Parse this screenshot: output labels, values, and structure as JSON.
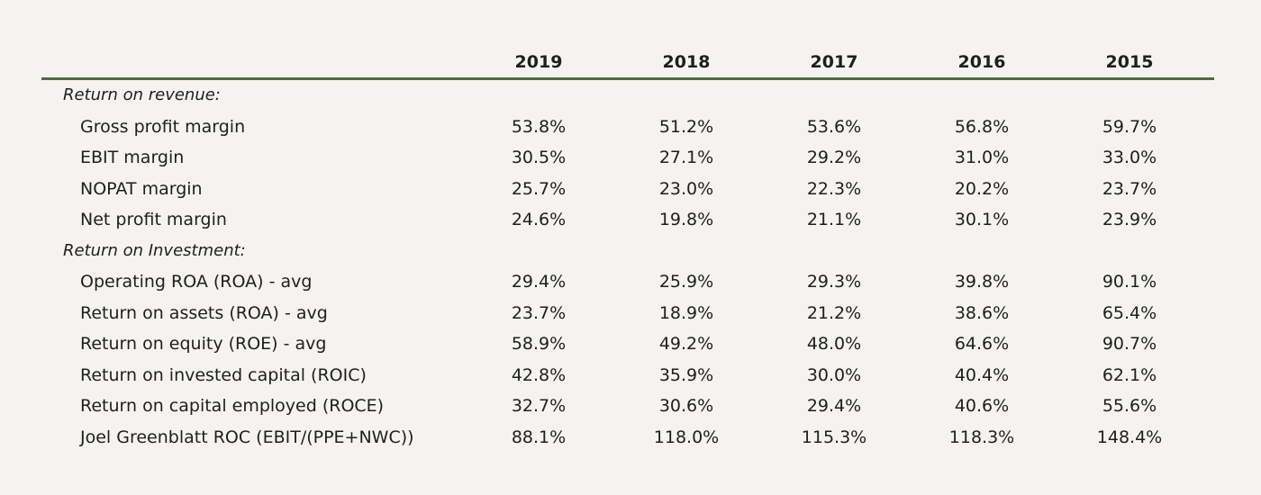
{
  "years": [
    "2019",
    "2018",
    "2017",
    "2016",
    "2015"
  ],
  "sections": [
    {
      "label": "Return on revenue:",
      "rows": [
        {
          "label": "Gross profit margin",
          "values": [
            "53.8%",
            "51.2%",
            "53.6%",
            "56.8%",
            "59.7%"
          ]
        },
        {
          "label": "EBIT margin",
          "values": [
            "30.5%",
            "27.1%",
            "29.2%",
            "31.0%",
            "33.0%"
          ]
        },
        {
          "label": "NOPAT margin",
          "values": [
            "25.7%",
            "23.0%",
            "22.3%",
            "20.2%",
            "23.7%"
          ]
        },
        {
          "label": "Net profit margin",
          "values": [
            "24.6%",
            "19.8%",
            "21.1%",
            "30.1%",
            "23.9%"
          ]
        }
      ]
    },
    {
      "label": "Return on Investment:",
      "rows": [
        {
          "label": "Operating ROA (ROA) - avg",
          "values": [
            "29.4%",
            "25.9%",
            "29.3%",
            "39.8%",
            "90.1%"
          ]
        },
        {
          "label": "Return on assets (ROA) - avg",
          "values": [
            "23.7%",
            "18.9%",
            "21.2%",
            "38.6%",
            "65.4%"
          ]
        },
        {
          "label": "Return on equity (ROE) - avg",
          "values": [
            "58.9%",
            "49.2%",
            "48.0%",
            "64.6%",
            "90.7%"
          ]
        },
        {
          "label": "Return on invested capital (ROIC)",
          "values": [
            "42.8%",
            "35.9%",
            "30.0%",
            "40.4%",
            "62.1%"
          ]
        },
        {
          "label": "Return on capital employed (ROCE)",
          "values": [
            "32.7%",
            "30.6%",
            "29.4%",
            "40.6%",
            "55.6%"
          ]
        },
        {
          "label": "Joel Greenblatt ROC (EBIT/(PPE+NWC))",
          "values": [
            "88.1%",
            "118.0%",
            "115.3%",
            "118.3%",
            "148.4%"
          ]
        }
      ]
    }
  ]
}
